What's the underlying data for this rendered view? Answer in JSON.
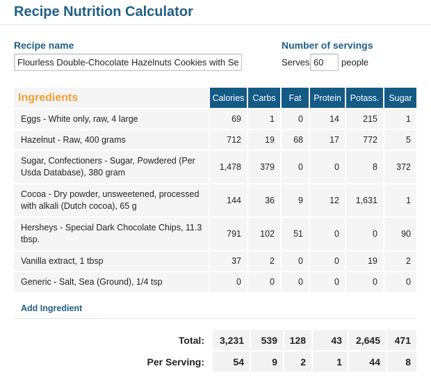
{
  "header": {
    "title": "Recipe Nutrition Calculator"
  },
  "recipe": {
    "name_label": "Recipe name",
    "name_value": "Flourless Double-Chocolate Hazelnuts Cookies with Sea Salt"
  },
  "servings": {
    "label": "Number of servings",
    "serves_text": "Serves",
    "value": "60",
    "people_text": "people"
  },
  "table": {
    "ingredients_header": "Ingredients",
    "columns": [
      "Calories",
      "Carbs",
      "Fat",
      "Protein",
      "Potass.",
      "Sugar"
    ],
    "rows": [
      {
        "name": "Eggs - White only, raw, 4 large",
        "values": [
          "69",
          "1",
          "0",
          "14",
          "215",
          "1"
        ]
      },
      {
        "name": "Hazelnut - Raw, 400 grams",
        "values": [
          "712",
          "19",
          "68",
          "17",
          "772",
          "5"
        ]
      },
      {
        "name": "Sugar, Confectioners - Sugar, Powdered (Per Usda Database), 380 gram",
        "values": [
          "1,478",
          "379",
          "0",
          "0",
          "8",
          "372"
        ]
      },
      {
        "name": "Cocoa - Dry powder, unsweetened, processed with alkali (Dutch cocoa), 65 g",
        "values": [
          "144",
          "36",
          "9",
          "12",
          "1,631",
          "1"
        ]
      },
      {
        "name": "Hersheys - Special Dark Chocolate Chips, 11.3 tbsp.",
        "values": [
          "791",
          "102",
          "51",
          "0",
          "0",
          "90"
        ]
      },
      {
        "name": "Vanilla extract, 1 tbsp",
        "values": [
          "37",
          "2",
          "0",
          "0",
          "19",
          "2"
        ]
      },
      {
        "name": "Generic - Salt, Sea (Ground), 1/4 tsp",
        "values": [
          "0",
          "0",
          "0",
          "0",
          "0",
          "0"
        ]
      }
    ]
  },
  "add_ingredient_label": "Add Ingredient",
  "totals": {
    "total_label": "Total:",
    "total_values": [
      "3,231",
      "539",
      "128",
      "43",
      "2,645",
      "471"
    ],
    "per_serving_label": "Per Serving:",
    "per_serving_values": [
      "54",
      "9",
      "2",
      "1",
      "44",
      "8"
    ]
  }
}
